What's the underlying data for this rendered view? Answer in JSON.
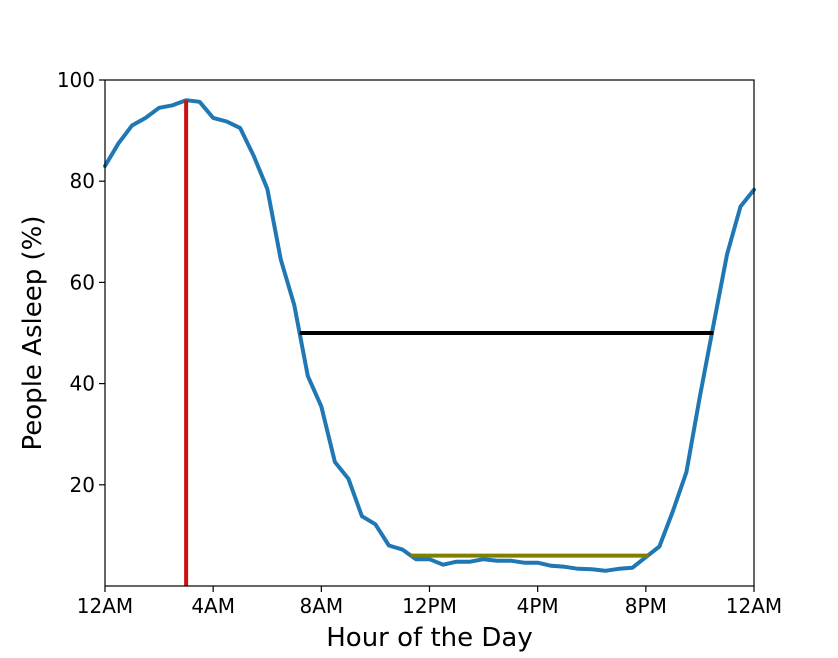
{
  "chart_data": {
    "type": "line",
    "title": "",
    "xlabel": "Hour of the Day",
    "ylabel": "People Asleep (%)",
    "xlim": [
      0,
      24
    ],
    "ylim": [
      0,
      100
    ],
    "grid": false,
    "x_ticks": [
      {
        "value": 0,
        "label": "12AM"
      },
      {
        "value": 4,
        "label": "4AM"
      },
      {
        "value": 8,
        "label": "8AM"
      },
      {
        "value": 12,
        "label": "12PM"
      },
      {
        "value": 16,
        "label": "4PM"
      },
      {
        "value": 20,
        "label": "8PM"
      },
      {
        "value": 24,
        "label": "12AM"
      }
    ],
    "y_ticks": [
      {
        "value": 20,
        "label": "20"
      },
      {
        "value": 40,
        "label": "40"
      },
      {
        "value": 60,
        "label": "60"
      },
      {
        "value": 80,
        "label": "80"
      },
      {
        "value": 100,
        "label": "100"
      }
    ],
    "series": [
      {
        "color": "#1f77b4",
        "x": [
          0,
          0.5,
          1,
          1.5,
          2,
          2.5,
          3,
          3.5,
          4,
          4.5,
          5,
          5.5,
          6,
          6.5,
          7,
          7.5,
          8,
          8.5,
          9,
          9.5,
          10,
          10.5,
          11,
          11.5,
          12,
          12.5,
          13,
          13.5,
          14,
          14.5,
          15,
          15.5,
          16,
          16.5,
          17,
          17.5,
          18,
          18.5,
          19,
          19.5,
          20,
          20.5,
          21,
          21.5,
          22,
          22.5,
          23,
          23.5,
          24
        ],
        "y": [
          83,
          87.5,
          91,
          92.5,
          94.5,
          95,
          96,
          95.7,
          92.5,
          91.8,
          90.5,
          85,
          78.5,
          64.5,
          55.5,
          41.5,
          35.5,
          24.5,
          21.2,
          13.8,
          12.2,
          8,
          7.2,
          5.3,
          5.3,
          4.2,
          4.8,
          4.8,
          5.3,
          5,
          5,
          4.6,
          4.6,
          4,
          3.8,
          3.4,
          3.3,
          3,
          3.4,
          3.6,
          5.7,
          7.8,
          14.8,
          22.5,
          37.5,
          51.5,
          65.5,
          75,
          78.3
        ]
      }
    ],
    "annotations": [
      {
        "kind": "vertical-line",
        "color": "#cc1111",
        "x": 3,
        "y_from": 0,
        "y_to": 96
      },
      {
        "kind": "horizontal-line",
        "color": "#000000",
        "y": 50,
        "x_from": 7.2,
        "x_to": 22.5
      },
      {
        "kind": "horizontal-line",
        "color": "#808000",
        "y": 6,
        "x_from": 11.3,
        "x_to": 20.1
      }
    ]
  }
}
